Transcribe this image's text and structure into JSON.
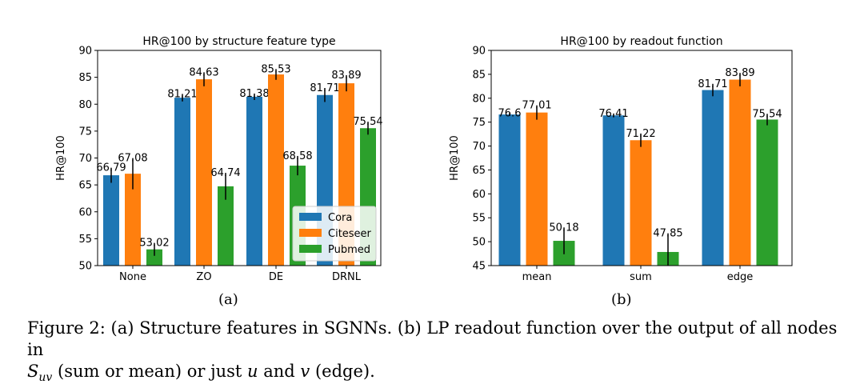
{
  "colors": {
    "Cora": "#1f77b4",
    "Citeseer": "#ff7f0e",
    "Pubmed": "#2ca02c",
    "err": "#000000"
  },
  "chart_data": [
    {
      "type": "bar",
      "title": "HR@100 by structure feature type",
      "xlabel": "",
      "ylabel": "HR@100",
      "ylim": [
        50,
        90
      ],
      "yticks": [
        "50",
        "55",
        "60",
        "65",
        "70",
        "75",
        "80",
        "85",
        "90"
      ],
      "categories": [
        "None",
        "ZO",
        "DE",
        "DRNL"
      ],
      "legend": {
        "position": "lower-right",
        "entries": [
          "Cora",
          "Citeseer",
          "Pubmed"
        ]
      },
      "series": [
        {
          "name": "Cora",
          "values": [
            66.79,
            81.21,
            81.38,
            81.71
          ],
          "labels": [
            "66.79",
            "81.21",
            "81.38",
            "81.71"
          ],
          "err": [
            1.4,
            0.7,
            0.6,
            1.3
          ]
        },
        {
          "name": "Citeseer",
          "values": [
            67.08,
            84.63,
            85.53,
            83.89
          ],
          "labels": [
            "67.08",
            "84.63",
            "85.53",
            "83.89"
          ],
          "err": [
            2.9,
            1.3,
            1.0,
            1.5
          ]
        },
        {
          "name": "Pubmed",
          "values": [
            53.02,
            64.74,
            68.58,
            75.54
          ],
          "labels": [
            "53.02",
            "64.74",
            "68.58",
            "75.54"
          ],
          "err": [
            1.2,
            2.5,
            1.8,
            1.2
          ]
        }
      ]
    },
    {
      "type": "bar",
      "title": "HR@100 by readout function",
      "xlabel": "",
      "ylabel": "HR@100",
      "ylim": [
        45,
        90
      ],
      "yticks": [
        "45",
        "50",
        "55",
        "60",
        "65",
        "70",
        "75",
        "80",
        "85",
        "90"
      ],
      "categories": [
        "mean",
        "sum",
        "edge"
      ],
      "series": [
        {
          "name": "Cora",
          "values": [
            76.6,
            76.41,
            81.71
          ],
          "labels": [
            "76.6",
            "76.41",
            "81.71"
          ],
          "err": [
            0.3,
            0.4,
            1.3
          ]
        },
        {
          "name": "Citeseer",
          "values": [
            77.01,
            71.22,
            83.89
          ],
          "labels": [
            "77.01",
            "71.22",
            "83.89"
          ],
          "err": [
            1.5,
            1.4,
            1.4
          ]
        },
        {
          "name": "Pubmed",
          "values": [
            50.18,
            47.85,
            75.54
          ],
          "labels": [
            "50.18",
            "47.85",
            "75.54"
          ],
          "err": [
            2.8,
            3.9,
            1.2
          ]
        }
      ]
    }
  ],
  "captions": {
    "a": "(a)",
    "b": "(b)"
  },
  "figure_caption": {
    "part1": "Figure 2: (a) Structure features in SGNNs. (b) LP readout function over the output of all nodes in",
    "s": "S",
    "uv": "uv",
    "part2": "(sum or mean) or just",
    "u": "u",
    "and": "and",
    "v": "v",
    "part3": "(edge)."
  }
}
